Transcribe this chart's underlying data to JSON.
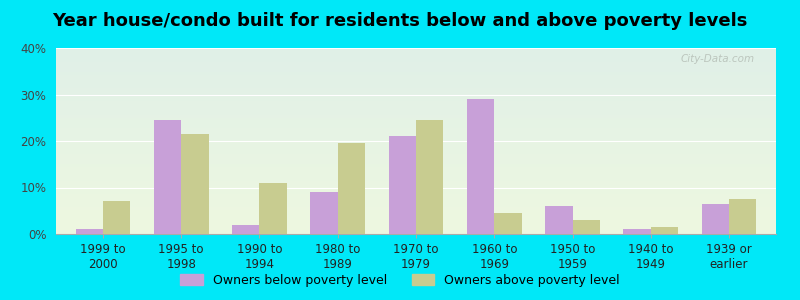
{
  "title": "Year house/condo built for residents below and above poverty levels",
  "categories": [
    "1999 to\n2000",
    "1995 to\n1998",
    "1990 to\n1994",
    "1980 to\n1989",
    "1970 to\n1979",
    "1960 to\n1969",
    "1950 to\n1959",
    "1940 to\n1949",
    "1939 or\nearlier"
  ],
  "below_poverty": [
    1.0,
    24.5,
    2.0,
    9.0,
    21.0,
    29.0,
    6.0,
    1.0,
    6.5
  ],
  "above_poverty": [
    7.0,
    21.5,
    11.0,
    19.5,
    24.5,
    4.5,
    3.0,
    1.5,
    7.5
  ],
  "below_color": "#c8a0d8",
  "above_color": "#c8cc90",
  "ylim": [
    0,
    40
  ],
  "yticks": [
    0,
    10,
    20,
    30,
    40
  ],
  "background_color": "#00e8f8",
  "plot_bg_top": "#e0f0e8",
  "plot_bg_bottom": "#eef8e0",
  "watermark": "City-Data.com",
  "legend_below": "Owners below poverty level",
  "legend_above": "Owners above poverty level",
  "bar_width": 0.35,
  "title_fontsize": 13,
  "tick_fontsize": 8.5,
  "legend_fontsize": 9
}
